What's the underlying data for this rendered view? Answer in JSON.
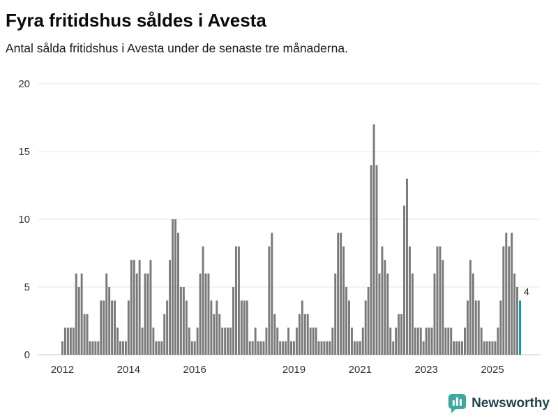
{
  "chart_data": {
    "type": "bar",
    "title": "Fyra fritidshus såldes i Avesta",
    "subtitle": "Antal sålda fritidshus i Avesta under de senaste tre månaderna.",
    "start_year": 2012,
    "frequency": "monthly",
    "values": [
      1,
      2,
      2,
      2,
      2,
      6,
      5,
      6,
      3,
      3,
      1,
      1,
      1,
      1,
      4,
      4,
      6,
      5,
      4,
      4,
      2,
      1,
      1,
      1,
      4,
      7,
      7,
      6,
      7,
      2,
      6,
      6,
      7,
      2,
      1,
      1,
      1,
      3,
      4,
      7,
      10,
      10,
      9,
      5,
      5,
      4,
      2,
      1,
      1,
      2,
      6,
      8,
      6,
      6,
      4,
      3,
      4,
      3,
      2,
      2,
      2,
      2,
      5,
      8,
      8,
      4,
      4,
      4,
      1,
      1,
      2,
      1,
      1,
      1,
      2,
      8,
      9,
      3,
      2,
      1,
      1,
      1,
      2,
      1,
      1,
      2,
      3,
      4,
      3,
      3,
      2,
      2,
      2,
      1,
      1,
      1,
      1,
      1,
      2,
      6,
      9,
      9,
      8,
      5,
      4,
      2,
      1,
      1,
      1,
      2,
      4,
      5,
      14,
      17,
      14,
      6,
      8,
      7,
      6,
      2,
      1,
      2,
      3,
      3,
      11,
      13,
      8,
      6,
      2,
      2,
      2,
      1,
      2,
      2,
      2,
      6,
      8,
      8,
      7,
      2,
      2,
      2,
      1,
      1,
      1,
      1,
      2,
      4,
      7,
      6,
      4,
      4,
      2,
      1,
      1,
      1,
      1,
      1,
      2,
      4,
      8,
      9,
      8,
      9,
      6,
      5,
      4
    ],
    "ylim": [
      0,
      20
    ],
    "yticks": [
      0,
      5,
      10,
      15,
      20
    ],
    "xticks": [
      {
        "label": "2012",
        "index": 0
      },
      {
        "label": "2014",
        "index": 24
      },
      {
        "label": "2016",
        "index": 48
      },
      {
        "label": "2019",
        "index": 84
      },
      {
        "label": "2021",
        "index": 108
      },
      {
        "label": "2023",
        "index": 132
      },
      {
        "label": "2025",
        "index": 156
      }
    ],
    "grid": true,
    "legend": "none",
    "bar_color": "#7a7a7a",
    "highlight_color": "#00a1a7",
    "highlight_last": true,
    "last_value_label": "4"
  },
  "footer": {
    "brand": "Newsworthy",
    "brand_text_color": "#1f4450",
    "logo_color": "#3fa79f"
  }
}
